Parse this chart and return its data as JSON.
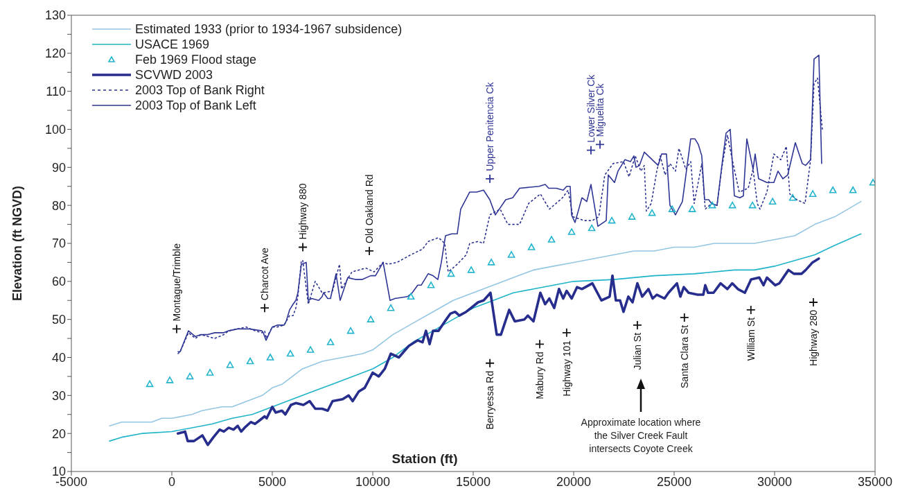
{
  "chart_data": {
    "type": "line",
    "xlabel": "Station (ft)",
    "ylabel": "Elevation (ft NGVD)",
    "xlim": [
      -5000,
      35000
    ],
    "xticks": [
      -5000,
      0,
      5000,
      10000,
      15000,
      20000,
      25000,
      30000,
      35000
    ],
    "ylim": [
      10,
      130
    ],
    "yticks": [
      10,
      {
        "value": 15,
        "label": null
      },
      20,
      {
        "value": 25,
        "label": null
      },
      30,
      {
        "value": 35,
        "label": null
      },
      40,
      {
        "value": 45,
        "label": null
      },
      50,
      {
        "value": 55,
        "label": null
      },
      60,
      {
        "value": 65,
        "label": null
      },
      70,
      {
        "value": 75,
        "label": null
      },
      80,
      {
        "value": 85,
        "label": null
      },
      90,
      {
        "value": 95,
        "label": null
      },
      100,
      {
        "value": 105,
        "label": null
      },
      110,
      {
        "value": 115,
        "label": null
      },
      120,
      {
        "value": 125,
        "label": null
      },
      130
    ],
    "grid": false,
    "legend": "top left",
    "marker": "none",
    "series": [
      {
        "name": "Estimated 1933 (prior to 1934-1967 subsidence)",
        "color": "#93c6e2",
        "x": [
          -3100,
          -2500,
          -1000,
          -500,
          0,
          1000,
          1500,
          2500,
          3000,
          4000,
          4500,
          5000,
          5500,
          6000,
          6500,
          7500,
          8500,
          9500,
          10000,
          11000,
          12000,
          13000,
          14000,
          15000,
          16000,
          17000,
          18000,
          19000,
          20000,
          21000,
          22000,
          23000,
          24000,
          25000,
          26000,
          27000,
          28000,
          29000,
          30000,
          31000,
          32000,
          33000,
          34300
        ],
        "values": [
          22,
          23,
          23,
          24,
          24,
          25,
          26,
          27,
          27,
          29,
          30,
          32,
          33,
          35,
          37,
          39,
          40,
          41,
          42,
          46,
          49,
          52,
          55,
          57,
          59,
          61,
          63,
          64,
          65,
          66,
          67,
          68,
          68,
          69,
          69,
          70,
          70,
          70,
          71,
          72,
          75,
          77,
          81
        ]
      },
      {
        "name": "USACE 1969",
        "color": "#1db3c8",
        "x": [
          -3100,
          -2500,
          -1500,
          0,
          1000,
          2000,
          3000,
          4000,
          5000,
          6000,
          7000,
          8000,
          9000,
          10000,
          11000,
          12000,
          13000,
          14000,
          15000,
          16000,
          17000,
          18000,
          19000,
          20000,
          22000,
          24000,
          26000,
          28000,
          29000,
          30000,
          31000,
          32000,
          33000,
          34300
        ],
        "values": [
          18,
          19,
          20,
          20.5,
          21.5,
          22.5,
          24,
          25,
          27,
          29,
          31,
          33,
          35,
          37,
          40,
          44,
          47,
          50,
          53,
          55,
          57,
          58,
          59,
          60,
          60.5,
          61.5,
          62,
          63,
          63,
          64,
          65.5,
          67,
          69.5,
          72.5
        ]
      },
      {
        "name": "Feb 1969 Flood stage",
        "type": "scatter",
        "marker": "triangle",
        "color": "#22b4cc",
        "x": [
          -1100,
          -100,
          900,
          1900,
          2900,
          3900,
          4900,
          5900,
          6900,
          7900,
          8900,
          9900,
          10900,
          11900,
          12900,
          13900,
          14900,
          15900,
          16900,
          17900,
          18900,
          19900,
          20900,
          21900,
          22900,
          23900,
          24900,
          25900,
          26900,
          27900,
          28900,
          29900,
          30900,
          31900,
          32900,
          33900,
          34900
        ],
        "values": [
          33,
          34,
          35,
          36,
          38,
          39,
          40,
          41,
          42,
          44,
          47,
          50,
          53,
          56,
          59,
          62,
          63,
          65,
          67,
          69,
          71,
          73,
          74,
          76,
          77,
          78,
          79,
          79,
          80,
          80,
          80,
          81,
          82,
          83,
          84,
          84,
          86
        ]
      },
      {
        "name": "SCVWD 2003",
        "color": "#262d8c",
        "x": [
          300,
          660,
          790,
          1100,
          1520,
          1790,
          2070,
          2380,
          2590,
          2830,
          3070,
          3280,
          3450,
          3620,
          3930,
          4140,
          4380,
          4620,
          4720,
          5000,
          5170,
          5480,
          5650,
          5930,
          6170,
          6550,
          6860,
          7140,
          7480,
          7760,
          8000,
          8500,
          8800,
          9000,
          9300,
          9600,
          10000,
          10300,
          10600,
          10900,
          11300,
          11790,
          12240,
          12480,
          12650,
          12830,
          13000,
          13270,
          13590,
          13860,
          14100,
          14310,
          14650,
          14890,
          15240,
          15520,
          15860,
          16170,
          16380,
          16790,
          17070,
          17550,
          17720,
          18000,
          18340,
          18580,
          18790,
          19030,
          19270,
          19480,
          19650,
          19900,
          20170,
          20410,
          20930,
          21380,
          21790,
          21930,
          22100,
          22310,
          22480,
          22720,
          22930,
          23170,
          23410,
          23720,
          23930,
          24140,
          24520,
          24720,
          25140,
          25310,
          25480,
          25720,
          26170,
          26450,
          26550,
          26690,
          26960,
          27310,
          27650,
          27890,
          28170,
          28520,
          28830,
          29240,
          29450,
          29620,
          30030,
          30240,
          30690,
          30960,
          31340,
          31550,
          31890,
          32200
        ],
        "values": [
          20,
          20.5,
          18,
          18,
          19.5,
          17,
          19,
          21,
          20.5,
          21.5,
          21,
          22,
          20.5,
          21.5,
          23,
          22.5,
          23.5,
          24.5,
          24,
          27,
          25.5,
          26,
          25,
          27.5,
          28,
          27.5,
          28.5,
          26.5,
          26.5,
          26,
          28.5,
          29,
          30,
          28.5,
          31,
          32,
          36,
          35,
          37,
          41,
          40,
          43,
          44.5,
          44,
          47,
          43.5,
          47,
          47,
          49.5,
          51.5,
          52,
          51,
          52,
          53,
          54.5,
          55,
          57,
          46,
          46,
          52.5,
          49.5,
          50,
          51,
          49.5,
          57,
          54,
          55.5,
          53,
          58,
          55.5,
          57.5,
          55.5,
          58.5,
          58,
          59.5,
          55,
          56,
          61.5,
          55,
          55,
          52,
          56,
          54.5,
          59.5,
          56,
          58,
          55.5,
          56.5,
          55.5,
          57,
          59.5,
          56,
          58.5,
          57,
          56.5,
          56.5,
          59,
          57,
          57,
          59.5,
          58,
          59.5,
          58,
          57,
          60.5,
          61,
          59,
          61,
          59,
          59.5,
          63,
          62,
          62,
          63,
          65,
          66
        ]
      },
      {
        "name": "2003 Top of Bank Right",
        "line_style": "dotted",
        "color": "#2a3190",
        "x": [
          310,
          413,
          827,
          1172,
          1448,
          1793,
          2137,
          2586,
          2827,
          3275,
          3700,
          4150,
          4480,
          4620,
          4700,
          5000,
          5240,
          5585,
          5861,
          6034,
          6172,
          6275,
          6447,
          6516,
          6792,
          7137,
          7482,
          7551,
          7999,
          8345,
          8447,
          8965,
          9654,
          10068,
          10516,
          10757,
          11206,
          11895,
          12481,
          12757,
          13274,
          13585,
          13688,
          13757,
          14205,
          14653,
          14826,
          15240,
          15515,
          15826,
          16343,
          16723,
          17309,
          17757,
          18343,
          18791,
          19446,
          19722,
          19964,
          20515,
          20929,
          21250,
          21550,
          21963,
          22481,
          22756,
          23067,
          23343,
          23515,
          23618,
          23860,
          24136,
          24308,
          24550,
          24791,
          25067,
          25239,
          25584,
          25825,
          25998,
          26377,
          26549,
          26860,
          27136,
          27377,
          27653,
          27894,
          28239,
          28687,
          28929,
          29136,
          29273,
          29618,
          29963,
          30308,
          30584,
          30756,
          31101,
          31515,
          31791,
          31963,
          32135,
          32376
        ],
        "values": [
          41,
          41.5,
          46.5,
          45,
          46,
          45.5,
          45,
          46,
          47,
          47.5,
          48,
          47,
          46.5,
          47,
          45,
          48,
          48,
          48.5,
          51,
          51,
          53,
          56,
          65.5,
          65.5,
          54,
          60,
          57,
          57,
          57.5,
          64.5,
          58,
          62.5,
          63.5,
          62.5,
          65,
          64.5,
          65,
          67,
          68.5,
          70.5,
          71.5,
          70,
          65,
          62.5,
          64.5,
          67,
          70,
          70.5,
          70,
          77.5,
          79,
          75,
          75,
          80.5,
          83,
          79,
          82,
          84,
          77,
          76,
          76,
          77,
          88,
          91,
          91.5,
          87.5,
          93,
          89,
          90.5,
          78.5,
          80.5,
          89,
          93,
          88,
          91,
          89,
          95,
          89.5,
          91.5,
          80.5,
          91,
          79,
          80.5,
          80,
          90,
          98.5,
          92,
          83.5,
          84.5,
          89.5,
          80.5,
          79,
          83.5,
          93.5,
          92,
          95.5,
          83,
          81.5,
          80.5,
          92,
          112,
          113.5,
          100
        ]
      },
      {
        "name": "2003 Top of Bank Left",
        "color": "#2e3594",
        "x": [
          310,
          413,
          827,
          1172,
          1448,
          1793,
          2137,
          2586,
          2827,
          3275,
          3861,
          4482,
          4551,
          4689,
          4999,
          5240,
          5585,
          5689,
          5861,
          6034,
          6172,
          6275,
          6447,
          6689,
          6792,
          6965,
          7310,
          7482,
          7551,
          7758,
          7896,
          8172,
          8378,
          8758,
          9137,
          9482,
          9895,
          10137,
          10516,
          10861,
          11102,
          11723,
          11964,
          12240,
          12412,
          12757,
          12999,
          13240,
          13413,
          13619,
          13930,
          14205,
          14378,
          14826,
          15171,
          15516,
          15826,
          16102,
          16619,
          16964,
          17309,
          18274,
          18584,
          18757,
          19136,
          19481,
          19653,
          19826,
          19895,
          20067,
          20412,
          20653,
          20860,
          21205,
          21619,
          21722,
          22033,
          22205,
          22550,
          22826,
          22998,
          23101,
          23274,
          23515,
          24205,
          24377,
          24618,
          24791,
          25067,
          25411,
          25825,
          26032,
          26205,
          26377,
          26515,
          26722,
          26860,
          27136,
          27377,
          27584,
          27791,
          27998,
          28273,
          28446,
          28618,
          28929,
          29032,
          29204,
          29618,
          29963,
          30170,
          30411,
          30653,
          31032,
          31377,
          31549,
          31791,
          31963,
          32204,
          32342
        ],
        "values": [
          41.5,
          41.5,
          47,
          45.5,
          46,
          46,
          46.5,
          46.5,
          47,
          47.5,
          47.5,
          47,
          46.5,
          44.5,
          48,
          48.5,
          48.5,
          49.5,
          52.5,
          54,
          55,
          57,
          64.5,
          65,
          55,
          55.5,
          55,
          56,
          57,
          55.5,
          55.5,
          62,
          55,
          61,
          60.5,
          60.5,
          61.5,
          61.5,
          65,
          55,
          55.5,
          56,
          57,
          59,
          59,
          62,
          61.5,
          60.5,
          65,
          72,
          72.5,
          72.5,
          79,
          83.5,
          83.5,
          84,
          81.5,
          77.5,
          81.5,
          82,
          84.5,
          85,
          85.5,
          84.5,
          84.5,
          84,
          85,
          85,
          77.5,
          75.5,
          82,
          81,
          85.5,
          74.5,
          76,
          88,
          86,
          89,
          92,
          91.5,
          93,
          90,
          90.5,
          94,
          90.5,
          93.5,
          93.5,
          80,
          77.5,
          81,
          97.5,
          97.5,
          96,
          93,
          81.5,
          81.5,
          80.5,
          80,
          90.5,
          99,
          100,
          82.5,
          82,
          82.5,
          97.5,
          89.5,
          93.5,
          87,
          86,
          86,
          89,
          87,
          88,
          96.5,
          91,
          90.5,
          92,
          118.5,
          119.5,
          91
        ]
      },
      {
        "type": "scatter",
        "marker": "cross",
        "color": "#111111",
        "colors": [
          "#111111",
          "#111111",
          "#111111",
          "#111111",
          "#2e3594",
          "#2e3594",
          "#2e3594",
          "#111111",
          "#111111",
          "#111111",
          "#111111",
          "#111111",
          "#111111",
          "#111111"
        ],
        "x": [
          240,
          4620,
          6520,
          9830,
          15830,
          20860,
          21310,
          15830,
          18310,
          19650,
          23170,
          25510,
          28820,
          31930
        ],
        "values": [
          47.5,
          53,
          69,
          68,
          87,
          94.5,
          96,
          38.5,
          43.5,
          46.5,
          48.5,
          50.5,
          52.5,
          54.5
        ]
      }
    ],
    "annotations": [
      {
        "text": "Montague/Trimble",
        "x": 240,
        "y": 47.5
      },
      {
        "text": "Charcot Ave",
        "x": 4620,
        "y": 53
      },
      {
        "text": "Highway 880",
        "x": 6520,
        "y": 69
      },
      {
        "text": "Old Oakland Rd",
        "x": 9830,
        "y": 68
      },
      {
        "text": "Upper Penitencia Ck",
        "x": 15830,
        "y": 87
      },
      {
        "text": "Lower Silver Ck",
        "x": 20860,
        "y": 94.5
      },
      {
        "text": "Miguelita Ck",
        "x": 21310,
        "y": 96
      },
      {
        "text": "Berryessa Rd",
        "x": 15830,
        "y": 38.5
      },
      {
        "text": "Mabury Rd",
        "x": 18310,
        "y": 43.5
      },
      {
        "text": "Highway 101",
        "x": 19650,
        "y": 46.5
      },
      {
        "text": "Julian St",
        "x": 23170,
        "y": 48.5
      },
      {
        "text": "Santa Clara St",
        "x": 25510,
        "y": 50.5
      },
      {
        "text": "William St",
        "x": 28820,
        "y": 52.5
      },
      {
        "text": "Highway 280",
        "x": 31930,
        "y": 54.5
      },
      "Approximate location where the Silver Creek Fault intersects Coyote Creek"
    ]
  }
}
